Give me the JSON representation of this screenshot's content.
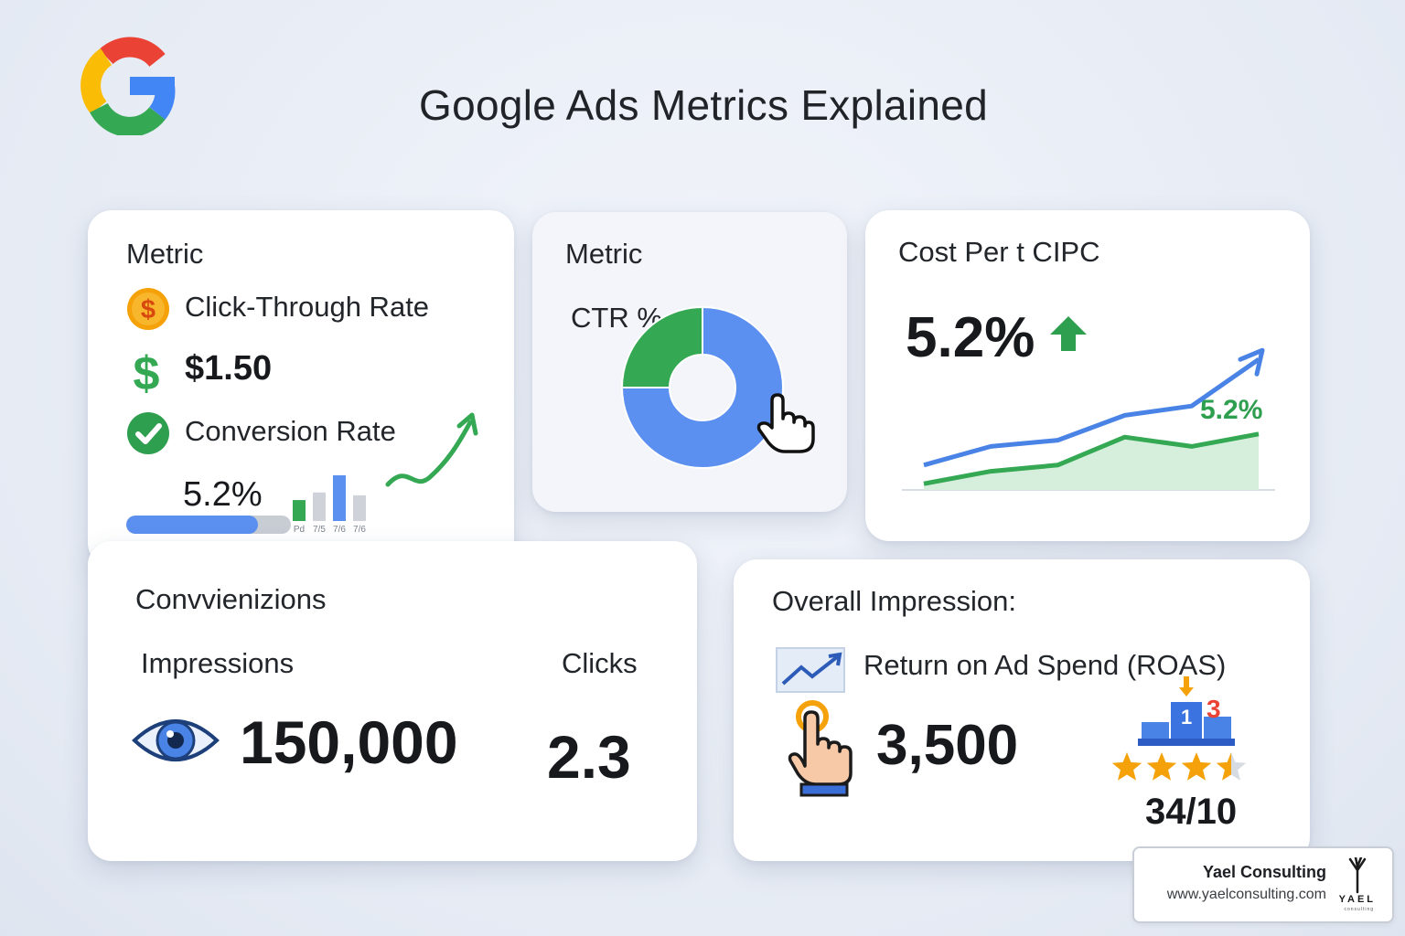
{
  "header": {
    "title": "Google Ads Metrics Explained"
  },
  "card1": {
    "heading": "Metric",
    "ctr_label": "Click-Through Rate",
    "cpc_value": "$1.50",
    "conv_label": "Conversion Rate",
    "rate_value": "5.2%",
    "progress_fraction": 0.8,
    "mini_bars": {
      "categories": [
        "Pd",
        "7/5",
        "7/6",
        "7/6"
      ],
      "values": [
        22,
        30,
        48,
        27
      ],
      "colors": [
        "#34a853",
        "#cfd2d8",
        "#5b8ff0",
        "#cfd2d8"
      ]
    }
  },
  "card2": {
    "heading": "Metric",
    "donut_label": "CTR %",
    "donut": {
      "slices": [
        {
          "value": 75,
          "color": "#5b8ff0"
        },
        {
          "value": 25,
          "color": "#34a853"
        }
      ]
    }
  },
  "card3": {
    "heading": "Cost Per t CIPC",
    "big_value": "5.2%",
    "line_label": "5.2%",
    "lines": {
      "blue": [
        8,
        14,
        16,
        24,
        27,
        42
      ],
      "green": [
        2,
        6,
        8,
        17,
        14,
        18
      ]
    }
  },
  "card4": {
    "heading": "Convvienizions",
    "impressions_label": "Impressions",
    "impressions_value": "150,000",
    "clicks_label": "Clicks",
    "clicks_value": "2.3"
  },
  "card5": {
    "heading": "Overall Impression:",
    "roas_label": "Return on Ad Spend (ROAS)",
    "value": "3,500",
    "rank_1": "1",
    "rank_3": "3",
    "score": "34/10",
    "stars": 3.5
  },
  "footer": {
    "company": "Yael Consulting",
    "url": "www.yaelconsulting.com",
    "logo_text": "YAEL",
    "logo_sub": "consulting"
  },
  "colors": {
    "blue": "#5b8ff0",
    "green": "#34a853",
    "gold": "#f5a20a",
    "red": "#ea4335"
  }
}
